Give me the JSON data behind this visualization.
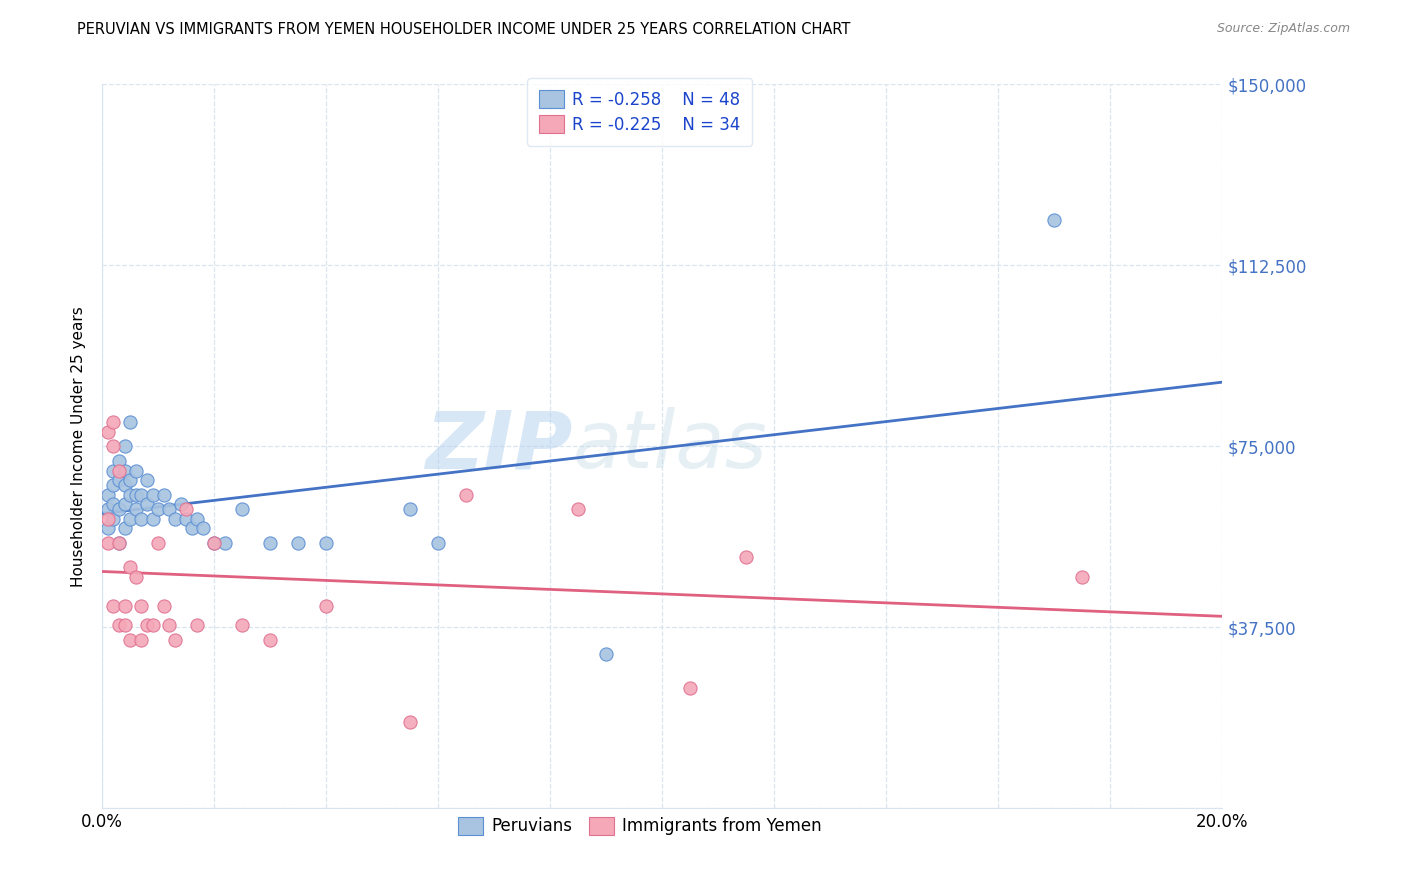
{
  "title": "PERUVIAN VS IMMIGRANTS FROM YEMEN HOUSEHOLDER INCOME UNDER 25 YEARS CORRELATION CHART",
  "source": "Source: ZipAtlas.com",
  "ylabel": "Householder Income Under 25 years",
  "xlim": [
    0.0,
    0.2
  ],
  "ylim": [
    0,
    150000
  ],
  "yticks": [
    0,
    37500,
    75000,
    112500,
    150000
  ],
  "ytick_labels": [
    "",
    "$37,500",
    "$75,000",
    "$112,500",
    "$150,000"
  ],
  "xtick_labels": [
    "0.0%",
    "",
    "",
    "",
    "",
    "",
    "",
    "",
    "",
    "",
    "20.0%"
  ],
  "legend_r1": "-0.258",
  "legend_n1": "48",
  "legend_r2": "-0.225",
  "legend_n2": "34",
  "blue_fill": "#a8c4e0",
  "pink_fill": "#f4a8b8",
  "blue_edge": "#5b8fd4",
  "pink_edge": "#e07090",
  "blue_line": "#4472c4",
  "pink_line": "#e06080",
  "grid_color": "#d8e4f0",
  "ytick_color": "#4472c4",
  "watermark1": "ZIP",
  "watermark2": "atlas",
  "peruvian_x": [
    0.001,
    0.001,
    0.001,
    0.002,
    0.002,
    0.002,
    0.002,
    0.003,
    0.003,
    0.003,
    0.003,
    0.004,
    0.004,
    0.004,
    0.004,
    0.004,
    0.005,
    0.005,
    0.005,
    0.005,
    0.006,
    0.006,
    0.006,
    0.007,
    0.007,
    0.008,
    0.008,
    0.009,
    0.009,
    0.01,
    0.011,
    0.012,
    0.013,
    0.014,
    0.015,
    0.016,
    0.017,
    0.018,
    0.02,
    0.022,
    0.025,
    0.03,
    0.035,
    0.04,
    0.055,
    0.06,
    0.09,
    0.17
  ],
  "peruvian_y": [
    58000,
    62000,
    65000,
    60000,
    63000,
    67000,
    70000,
    55000,
    62000,
    68000,
    72000,
    58000,
    63000,
    67000,
    70000,
    75000,
    60000,
    65000,
    68000,
    80000,
    62000,
    65000,
    70000,
    60000,
    65000,
    63000,
    68000,
    60000,
    65000,
    62000,
    65000,
    62000,
    60000,
    63000,
    60000,
    58000,
    60000,
    58000,
    55000,
    55000,
    62000,
    55000,
    55000,
    55000,
    62000,
    55000,
    32000,
    122000
  ],
  "yemen_x": [
    0.001,
    0.001,
    0.001,
    0.002,
    0.002,
    0.002,
    0.003,
    0.003,
    0.003,
    0.004,
    0.004,
    0.005,
    0.005,
    0.006,
    0.007,
    0.007,
    0.008,
    0.009,
    0.01,
    0.011,
    0.012,
    0.013,
    0.015,
    0.017,
    0.02,
    0.025,
    0.03,
    0.04,
    0.055,
    0.065,
    0.085,
    0.105,
    0.115,
    0.175
  ],
  "yemen_y": [
    60000,
    78000,
    55000,
    80000,
    75000,
    42000,
    70000,
    55000,
    38000,
    42000,
    38000,
    50000,
    35000,
    48000,
    42000,
    35000,
    38000,
    38000,
    55000,
    42000,
    38000,
    35000,
    62000,
    38000,
    55000,
    38000,
    35000,
    42000,
    18000,
    65000,
    62000,
    25000,
    52000,
    48000
  ]
}
